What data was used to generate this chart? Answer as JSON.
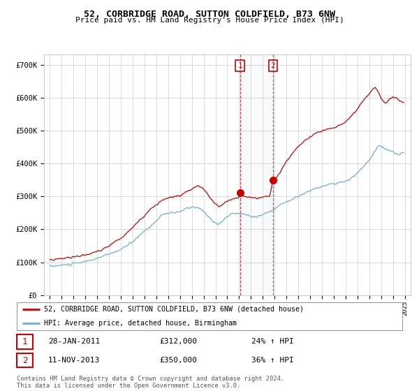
{
  "title": "52, CORBRIDGE ROAD, SUTTON COLDFIELD, B73 6NW",
  "subtitle": "Price paid vs. HM Land Registry's House Price Index (HPI)",
  "legend_line1": "52, CORBRIDGE ROAD, SUTTON COLDFIELD, B73 6NW (detached house)",
  "legend_line2": "HPI: Average price, detached house, Birmingham",
  "transaction1_date": "28-JAN-2011",
  "transaction1_price": "£312,000",
  "transaction1_hpi": "24% ↑ HPI",
  "transaction2_date": "11-NOV-2013",
  "transaction2_price": "£350,000",
  "transaction2_hpi": "36% ↑ HPI",
  "footnote": "Contains HM Land Registry data © Crown copyright and database right 2024.\nThis data is licensed under the Open Government Licence v3.0.",
  "hpi_color": "#6baed6",
  "price_color": "#cc0000",
  "marker1_x": 2011.07,
  "marker1_y": 312000,
  "marker2_x": 2013.86,
  "marker2_y": 350000,
  "ylim": [
    0,
    730000
  ],
  "yticks": [
    0,
    100000,
    200000,
    300000,
    400000,
    500000,
    600000,
    700000
  ],
  "background_color": "#ffffff",
  "grid_color": "#cccccc",
  "xlim_left": 1994.5,
  "xlim_right": 2025.5
}
